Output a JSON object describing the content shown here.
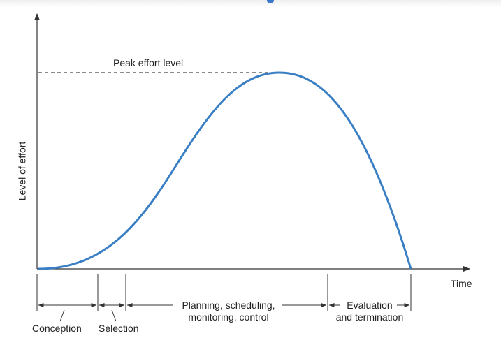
{
  "diagram": {
    "peak_label": "Peak effort level",
    "y_axis_label": "Level of effort",
    "x_axis_label": "Time",
    "phases": [
      {
        "label": "Conception"
      },
      {
        "label": "Selection"
      },
      {
        "label_line1": "Planning, scheduling,",
        "label_line2": "monitoring, control"
      },
      {
        "label_line1": "Evaluation",
        "label_line2": "and termination"
      }
    ],
    "colors": {
      "curve": "#3a7fc4",
      "lines": "#333333",
      "accent": "#3a78c8"
    }
  }
}
